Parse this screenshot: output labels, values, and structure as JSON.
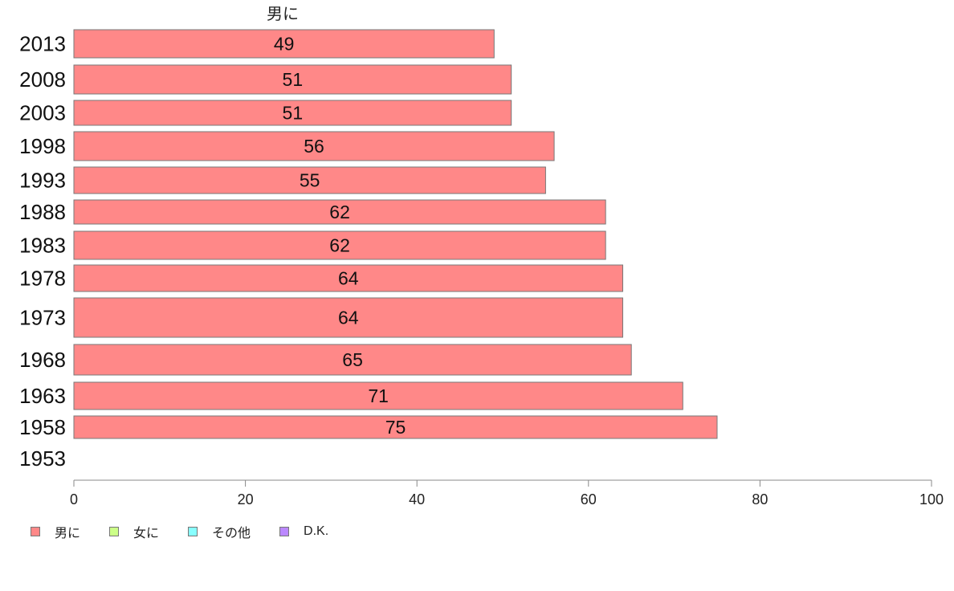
{
  "chart_data": {
    "type": "bar",
    "orientation": "horizontal",
    "header": "男に",
    "categories": [
      "2013",
      "2008",
      "2003",
      "1998",
      "1993",
      "1988",
      "1983",
      "1978",
      "1973",
      "1968",
      "1963",
      "1958",
      "1953"
    ],
    "series": [
      {
        "name": "男に",
        "color": "#ff8888",
        "values": [
          49,
          51,
          51,
          56,
          55,
          62,
          62,
          64,
          64,
          65,
          71,
          75,
          null
        ],
        "labels": [
          "49",
          "51",
          "51",
          "56",
          "55",
          "62",
          "62",
          "64",
          "64",
          "65",
          "71",
          "75",
          ""
        ]
      }
    ],
    "xlim": [
      0,
      100
    ],
    "xticks": [
      "0",
      "20",
      "40",
      "60",
      "80",
      "100"
    ],
    "legend": {
      "placement": "bottom-left",
      "items": [
        {
          "label": "男に",
          "color": "#ff8888"
        },
        {
          "label": "女に",
          "color": "#ccff88"
        },
        {
          "label": "その他",
          "color": "#88ffff"
        },
        {
          "label": "D.K.",
          "color": "#bb88ff"
        }
      ]
    }
  }
}
